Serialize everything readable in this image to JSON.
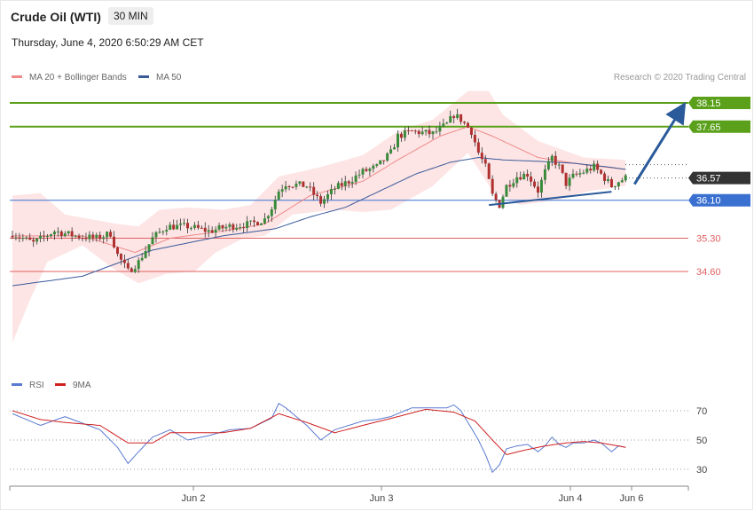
{
  "header": {
    "title": "Crude Oil (WTI)",
    "timeframe": "30 MIN",
    "datetime": "Thursday, June 4, 2020 6:50:29 AM CET"
  },
  "colors": {
    "ma20": "#f08a8a",
    "ma50": "#3a5a9a",
    "band_fill": "#fde0e0",
    "bull": "#3a8a3a",
    "bear": "#b03030",
    "resistance": "#5aa01a",
    "support": "#e06060",
    "pivot": "#3a70d0",
    "last": "#333333",
    "rsi": "#5a7ad0",
    "rsi_ma": "#d02020",
    "arrow": "#2a5a9a"
  },
  "chart_data": [
    {
      "type": "candlestick",
      "legend": [
        {
          "label": "MA 20 + Bollinger Bands",
          "color": "#f08a8a"
        },
        {
          "label": "MA 50",
          "color": "#3a5a9a"
        }
      ],
      "credit": "Research © 2020 Trading Central",
      "x_ticks": [
        "Jun 2",
        "Jun 3",
        "Jun 4",
        "Jun 6"
      ],
      "levels": [
        {
          "value": 38.15,
          "label": "38.15",
          "kind": "resistance"
        },
        {
          "value": 37.65,
          "label": "37.65",
          "kind": "resistance"
        },
        {
          "value": 36.57,
          "label": "36.57",
          "kind": "last"
        },
        {
          "value": 36.1,
          "label": "36.10",
          "kind": "pivot"
        },
        {
          "value": 35.3,
          "label": "35.30",
          "kind": "support"
        },
        {
          "value": 34.6,
          "label": "34.60",
          "kind": "support"
        }
      ],
      "close_anchors": [
        [
          0,
          35.4
        ],
        [
          6,
          35.2
        ],
        [
          12,
          35.45
        ],
        [
          18,
          35.35
        ],
        [
          24,
          35.3
        ],
        [
          28,
          35.4
        ],
        [
          30,
          34.95
        ],
        [
          33,
          34.6
        ],
        [
          36,
          34.8
        ],
        [
          40,
          35.3
        ],
        [
          44,
          35.55
        ],
        [
          50,
          35.55
        ],
        [
          56,
          35.45
        ],
        [
          62,
          35.55
        ],
        [
          68,
          35.6
        ],
        [
          72,
          35.7
        ],
        [
          74,
          35.95
        ],
        [
          76,
          36.3
        ],
        [
          78,
          36.45
        ],
        [
          84,
          36.4
        ],
        [
          88,
          36.05
        ],
        [
          92,
          36.35
        ],
        [
          96,
          36.5
        ],
        [
          100,
          36.7
        ],
        [
          104,
          36.8
        ],
        [
          108,
          37.1
        ],
        [
          110,
          37.45
        ],
        [
          114,
          37.55
        ],
        [
          120,
          37.5
        ],
        [
          124,
          37.7
        ],
        [
          126,
          37.9
        ],
        [
          128,
          37.8
        ],
        [
          131,
          37.55
        ],
        [
          133,
          37.1
        ],
        [
          135,
          36.8
        ],
        [
          137,
          36.2
        ],
        [
          139,
          36.0
        ],
        [
          141,
          36.4
        ],
        [
          144,
          36.6
        ],
        [
          147,
          36.65
        ],
        [
          150,
          36.3
        ],
        [
          152,
          36.7
        ],
        [
          154,
          37.0
        ],
        [
          156,
          36.8
        ],
        [
          158,
          36.45
        ],
        [
          160,
          36.6
        ],
        [
          163,
          36.7
        ],
        [
          166,
          36.8
        ],
        [
          168,
          36.65
        ],
        [
          171,
          36.4
        ],
        [
          173,
          36.5
        ],
        [
          175,
          36.57
        ]
      ],
      "ma20_anchors": [
        [
          0,
          35.35
        ],
        [
          20,
          35.35
        ],
        [
          35,
          35.0
        ],
        [
          45,
          35.3
        ],
        [
          60,
          35.45
        ],
        [
          72,
          35.6
        ],
        [
          85,
          36.2
        ],
        [
          100,
          36.5
        ],
        [
          110,
          36.95
        ],
        [
          122,
          37.45
        ],
        [
          130,
          37.65
        ],
        [
          137,
          37.45
        ],
        [
          150,
          37.0
        ],
        [
          163,
          36.85
        ],
        [
          175,
          36.75
        ]
      ],
      "upper_band_anchors": [
        [
          0,
          36.2
        ],
        [
          8,
          36.25
        ],
        [
          15,
          35.8
        ],
        [
          30,
          35.6
        ],
        [
          36,
          35.55
        ],
        [
          42,
          35.9
        ],
        [
          50,
          35.95
        ],
        [
          60,
          35.9
        ],
        [
          68,
          36.0
        ],
        [
          76,
          36.6
        ],
        [
          88,
          36.8
        ],
        [
          100,
          37.05
        ],
        [
          110,
          37.55
        ],
        [
          120,
          37.8
        ],
        [
          130,
          38.4
        ],
        [
          136,
          38.4
        ],
        [
          140,
          37.9
        ],
        [
          150,
          37.35
        ],
        [
          163,
          37.0
        ],
        [
          175,
          36.95
        ]
      ],
      "lower_band_anchors": [
        [
          0,
          33.1
        ],
        [
          5,
          34.0
        ],
        [
          10,
          34.8
        ],
        [
          20,
          35.15
        ],
        [
          28,
          34.7
        ],
        [
          36,
          34.35
        ],
        [
          44,
          34.55
        ],
        [
          52,
          34.6
        ],
        [
          58,
          35.0
        ],
        [
          66,
          35.3
        ],
        [
          72,
          35.35
        ],
        [
          80,
          35.8
        ],
        [
          92,
          35.9
        ],
        [
          100,
          35.85
        ],
        [
          108,
          35.9
        ],
        [
          120,
          36.4
        ],
        [
          130,
          37.1
        ],
        [
          137,
          36.3
        ],
        [
          145,
          36.0
        ],
        [
          155,
          36.1
        ],
        [
          165,
          36.3
        ],
        [
          175,
          36.4
        ]
      ],
      "ma50_anchors": [
        [
          0,
          34.3
        ],
        [
          20,
          34.5
        ],
        [
          40,
          35.05
        ],
        [
          60,
          35.35
        ],
        [
          75,
          35.5
        ],
        [
          85,
          35.75
        ],
        [
          95,
          35.95
        ],
        [
          105,
          36.3
        ],
        [
          115,
          36.65
        ],
        [
          125,
          36.9
        ],
        [
          133,
          37.0
        ],
        [
          140,
          36.95
        ],
        [
          150,
          36.92
        ],
        [
          160,
          36.88
        ],
        [
          170,
          36.8
        ],
        [
          175,
          36.75
        ]
      ],
      "triangle_line": [
        [
          136,
          36.0
        ],
        [
          171,
          36.28
        ]
      ],
      "forecast_arrow": [
        [
          174,
          36.7
        ],
        [
          190,
          38.15
        ]
      ],
      "y_range": [
        33.0,
        38.5
      ]
    },
    {
      "type": "line",
      "legend": [
        {
          "label": "RSI",
          "color": "#5a7ad0"
        },
        {
          "label": "9MA",
          "color": "#d02020"
        }
      ],
      "y_ticks": [
        70,
        50,
        30
      ],
      "y_range": [
        20,
        80
      ],
      "rsi_anchors": [
        [
          0,
          68
        ],
        [
          8,
          60
        ],
        [
          15,
          66
        ],
        [
          25,
          57
        ],
        [
          30,
          45
        ],
        [
          33,
          34
        ],
        [
          36,
          42
        ],
        [
          40,
          52
        ],
        [
          45,
          57
        ],
        [
          50,
          50
        ],
        [
          56,
          53
        ],
        [
          62,
          57
        ],
        [
          68,
          58
        ],
        [
          74,
          65
        ],
        [
          76,
          75
        ],
        [
          78,
          72
        ],
        [
          84,
          60
        ],
        [
          88,
          50
        ],
        [
          92,
          57
        ],
        [
          96,
          60
        ],
        [
          100,
          63
        ],
        [
          104,
          64
        ],
        [
          108,
          66
        ],
        [
          110,
          68
        ],
        [
          114,
          72
        ],
        [
          120,
          72
        ],
        [
          124,
          72
        ],
        [
          126,
          74
        ],
        [
          128,
          70
        ],
        [
          131,
          58
        ],
        [
          133,
          50
        ],
        [
          135,
          40
        ],
        [
          137,
          28
        ],
        [
          139,
          33
        ],
        [
          141,
          44
        ],
        [
          144,
          46
        ],
        [
          147,
          47
        ],
        [
          150,
          42
        ],
        [
          152,
          46
        ],
        [
          154,
          52
        ],
        [
          156,
          47
        ],
        [
          158,
          45
        ],
        [
          160,
          48
        ],
        [
          163,
          48
        ],
        [
          166,
          50
        ],
        [
          168,
          48
        ],
        [
          171,
          42
        ],
        [
          173,
          46
        ],
        [
          175,
          45
        ]
      ],
      "ma_anchors": [
        [
          0,
          70
        ],
        [
          8,
          64
        ],
        [
          15,
          62
        ],
        [
          25,
          60
        ],
        [
          33,
          48
        ],
        [
          40,
          48
        ],
        [
          45,
          55
        ],
        [
          52,
          55
        ],
        [
          60,
          55
        ],
        [
          68,
          58
        ],
        [
          76,
          68
        ],
        [
          84,
          62
        ],
        [
          92,
          55
        ],
        [
          100,
          60
        ],
        [
          110,
          66
        ],
        [
          118,
          71
        ],
        [
          126,
          69
        ],
        [
          132,
          63
        ],
        [
          137,
          50
        ],
        [
          141,
          40
        ],
        [
          146,
          43
        ],
        [
          152,
          46
        ],
        [
          158,
          48
        ],
        [
          163,
          49
        ],
        [
          168,
          48
        ],
        [
          175,
          45
        ]
      ]
    }
  ]
}
